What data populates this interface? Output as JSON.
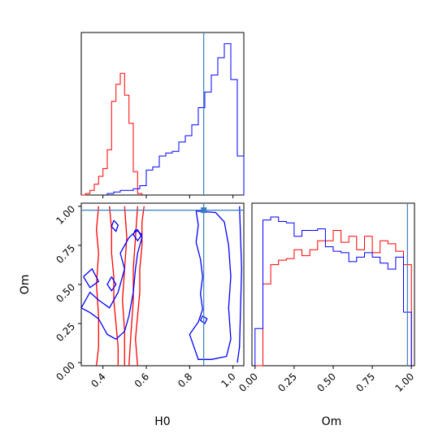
{
  "chart_data": {
    "type": "corner",
    "parameters": [
      "H0",
      "Om"
    ],
    "xlabel": "H0",
    "ylabel": "Om",
    "om_xlabel": "Om",
    "h0_ticks": [
      "0.4",
      "0.6",
      "0.8",
      "1.0"
    ],
    "om_ticks": [
      "0.00",
      "0.25",
      "0.50",
      "0.75",
      "1.00"
    ],
    "h0_range": [
      0.3,
      1.05
    ],
    "om_range": [
      -0.02,
      1.02
    ],
    "colors": {
      "red": "#ff0000",
      "blue": "#0000ff",
      "truth": "#3a7ebf"
    },
    "truth": {
      "H0": 0.865,
      "Om": 0.975
    },
    "h0_hist_red": {
      "edges": [
        0.3,
        0.32,
        0.34,
        0.36,
        0.38,
        0.4,
        0.42,
        0.44,
        0.46,
        0.48,
        0.5,
        0.52,
        0.54,
        0.56,
        0.58
      ],
      "counts": [
        0.0,
        0.01,
        0.03,
        0.07,
        0.12,
        0.17,
        0.29,
        0.6,
        0.71,
        0.78,
        0.64,
        0.46,
        0.15,
        0.01
      ]
    },
    "h0_hist_blue": {
      "edges": [
        0.42,
        0.45,
        0.48,
        0.51,
        0.54,
        0.57,
        0.6,
        0.63,
        0.66,
        0.69,
        0.72,
        0.75,
        0.78,
        0.81,
        0.84,
        0.87,
        0.9,
        0.93,
        0.96,
        0.99,
        1.02,
        1.05
      ],
      "counts": [
        0.01,
        0.02,
        0.03,
        0.03,
        0.04,
        0.06,
        0.16,
        0.18,
        0.25,
        0.27,
        0.28,
        0.34,
        0.38,
        0.45,
        0.56,
        0.66,
        0.77,
        0.88,
        0.97,
        0.74,
        0.25
      ]
    },
    "om_hist_red": {
      "edges": [
        0.0,
        0.05,
        0.1,
        0.15,
        0.2,
        0.25,
        0.3,
        0.35,
        0.4,
        0.45,
        0.5,
        0.55,
        0.6,
        0.65,
        0.7,
        0.75,
        0.8,
        0.85,
        0.9,
        0.95,
        1.0
      ],
      "counts": [
        0.0,
        0.55,
        0.68,
        0.71,
        0.72,
        0.78,
        0.74,
        0.78,
        0.84,
        0.84,
        0.91,
        0.83,
        0.87,
        0.78,
        0.87,
        0.76,
        0.84,
        0.82,
        0.77,
        0.68
      ]
    },
    "om_hist_blue": {
      "edges": [
        0.0,
        0.05,
        0.1,
        0.15,
        0.2,
        0.25,
        0.3,
        0.35,
        0.4,
        0.45,
        0.5,
        0.55,
        0.6,
        0.65,
        0.7,
        0.75,
        0.8,
        0.85,
        0.9,
        0.95,
        1.0
      ],
      "counts": [
        0.25,
        0.98,
        1.0,
        0.97,
        0.96,
        0.87,
        0.91,
        0.91,
        0.92,
        0.8,
        0.77,
        0.76,
        0.7,
        0.73,
        0.76,
        0.73,
        0.69,
        0.65,
        0.73,
        0.36
      ]
    },
    "contours_red": [
      [
        [
          0.47,
          -0.02
        ],
        [
          0.47,
          0.1
        ],
        [
          0.46,
          0.25
        ],
        [
          0.45,
          0.4
        ],
        [
          0.45,
          0.55
        ],
        [
          0.44,
          0.7
        ],
        [
          0.44,
          0.85
        ],
        [
          0.43,
          1.0
        ]
      ],
      [
        [
          0.56,
          -0.02
        ],
        [
          0.55,
          0.15
        ],
        [
          0.56,
          0.3
        ],
        [
          0.57,
          0.45
        ],
        [
          0.57,
          0.6
        ],
        [
          0.58,
          0.75
        ],
        [
          0.58,
          0.9
        ],
        [
          0.59,
          1.0
        ]
      ],
      [
        [
          0.5,
          -0.02
        ],
        [
          0.5,
          0.2
        ],
        [
          0.49,
          0.4
        ],
        [
          0.5,
          0.6
        ],
        [
          0.51,
          0.8
        ],
        [
          0.5,
          1.0
        ]
      ],
      [
        [
          0.52,
          -0.02
        ],
        [
          0.53,
          0.2
        ],
        [
          0.54,
          0.4
        ],
        [
          0.54,
          0.6
        ],
        [
          0.55,
          0.8
        ],
        [
          0.56,
          1.0
        ]
      ],
      [
        [
          0.37,
          -0.02
        ],
        [
          0.38,
          0.1
        ],
        [
          0.38,
          0.3
        ],
        [
          0.37,
          0.5
        ],
        [
          0.38,
          0.7
        ],
        [
          0.37,
          0.85
        ],
        [
          0.38,
          1.0
        ]
      ]
    ],
    "contours_blue": [
      [
        [
          0.3,
          0.35
        ],
        [
          0.34,
          0.45
        ],
        [
          0.38,
          0.4
        ],
        [
          0.43,
          0.35
        ],
        [
          0.47,
          0.45
        ],
        [
          0.5,
          0.6
        ],
        [
          0.48,
          0.7
        ],
        [
          0.52,
          0.8
        ],
        [
          0.56,
          0.85
        ],
        [
          0.58,
          0.8
        ],
        [
          0.56,
          0.7
        ],
        [
          0.55,
          0.6
        ],
        [
          0.54,
          0.45
        ],
        [
          0.52,
          0.3
        ],
        [
          0.5,
          0.2
        ],
        [
          0.46,
          0.15
        ],
        [
          0.42,
          0.18
        ],
        [
          0.38,
          0.28
        ],
        [
          0.34,
          0.32
        ],
        [
          0.3,
          0.35
        ]
      ],
      [
        [
          0.83,
          0.97
        ],
        [
          0.92,
          0.96
        ],
        [
          0.96,
          0.9
        ],
        [
          0.98,
          0.75
        ],
        [
          0.99,
          0.55
        ],
        [
          0.98,
          0.35
        ],
        [
          0.99,
          0.15
        ],
        [
          0.97,
          0.04
        ],
        [
          0.9,
          0.02
        ],
        [
          0.84,
          0.02
        ],
        [
          0.82,
          0.1
        ],
        [
          0.8,
          0.18
        ],
        [
          0.84,
          0.26
        ],
        [
          0.86,
          0.34
        ],
        [
          0.85,
          0.44
        ],
        [
          0.86,
          0.55
        ],
        [
          0.85,
          0.66
        ],
        [
          0.83,
          0.77
        ],
        [
          0.84,
          0.88
        ],
        [
          0.83,
          0.97
        ]
      ],
      [
        [
          0.31,
          0.55
        ],
        [
          0.35,
          0.6
        ],
        [
          0.38,
          0.52
        ],
        [
          0.34,
          0.48
        ],
        [
          0.31,
          0.55
        ]
      ],
      [
        [
          0.44,
          0.55
        ],
        [
          0.46,
          0.5
        ],
        [
          0.44,
          0.46
        ],
        [
          0.42,
          0.5
        ],
        [
          0.44,
          0.55
        ]
      ],
      [
        [
          0.45,
          0.91
        ],
        [
          0.47,
          0.88
        ],
        [
          0.46,
          0.84
        ],
        [
          0.44,
          0.87
        ],
        [
          0.45,
          0.91
        ]
      ],
      [
        [
          0.55,
          0.85
        ],
        [
          0.58,
          0.82
        ],
        [
          0.56,
          0.78
        ],
        [
          0.54,
          0.82
        ],
        [
          0.55,
          0.85
        ]
      ],
      [
        [
          0.86,
          0.3
        ],
        [
          0.88,
          0.28
        ],
        [
          0.87,
          0.25
        ],
        [
          0.85,
          0.27
        ],
        [
          0.86,
          0.3
        ]
      ],
      [
        [
          1.03,
          1.0
        ],
        [
          1.04,
          0.6
        ],
        [
          1.03,
          0.1
        ],
        [
          1.02,
          0.0
        ]
      ]
    ]
  }
}
